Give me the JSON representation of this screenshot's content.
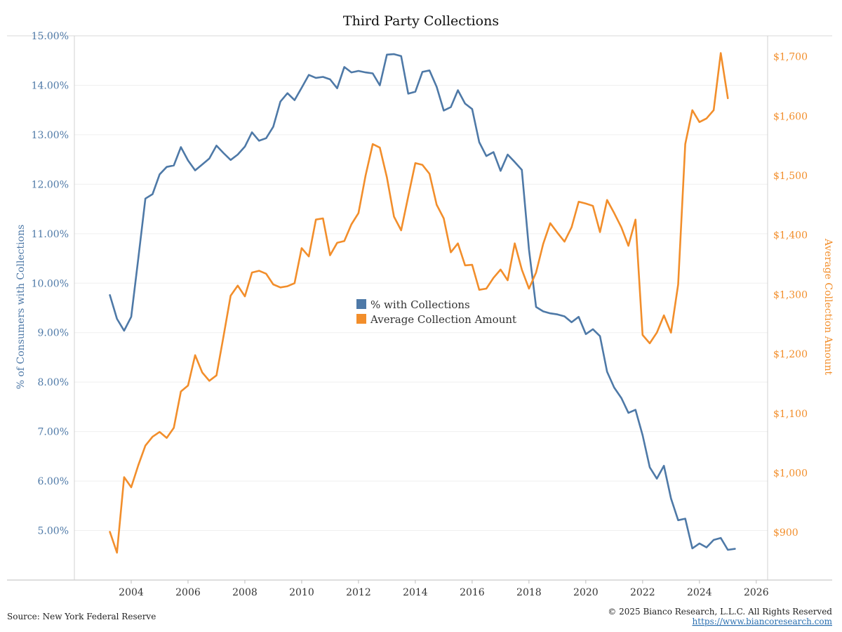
{
  "chart_data": {
    "type": "line",
    "title": "Third Party Collections",
    "y_left_label": "% of Consumers with Collections",
    "y_right_label": "Average Collection Amount",
    "y_left_range": [
      4.0,
      15.0
    ],
    "y_right_range": [
      820,
      1735
    ],
    "x_range": [
      2002.0,
      2026.4
    ],
    "x_ticks": [
      "2004",
      "2006",
      "2008",
      "2010",
      "2012",
      "2014",
      "2016",
      "2018",
      "2020",
      "2022",
      "2024",
      "2026"
    ],
    "y_left_ticks": [
      "5.00%",
      "6.00%",
      "7.00%",
      "8.00%",
      "9.00%",
      "10.00%",
      "11.00%",
      "12.00%",
      "13.00%",
      "14.00%",
      "15.00%"
    ],
    "y_right_ticks": [
      "$900",
      "$1,000",
      "$1,100",
      "$1,200",
      "$1,300",
      "$1,400",
      "$1,500",
      "$1,600",
      "$1,700"
    ],
    "grid": true,
    "legend_placement": "center",
    "series": [
      {
        "name": "% with Collections",
        "axis": "left",
        "color": "#4e79a7",
        "points": [
          [
            2003.25,
            9.76
          ],
          [
            2003.5,
            9.28
          ],
          [
            2003.75,
            9.04
          ],
          [
            2004.0,
            9.32
          ],
          [
            2004.25,
            10.5
          ],
          [
            2004.5,
            11.71
          ],
          [
            2004.75,
            11.8
          ],
          [
            2005.0,
            12.2
          ],
          [
            2005.25,
            12.35
          ],
          [
            2005.5,
            12.38
          ],
          [
            2005.75,
            12.75
          ],
          [
            2006.0,
            12.48
          ],
          [
            2006.25,
            12.28
          ],
          [
            2006.5,
            12.4
          ],
          [
            2006.75,
            12.52
          ],
          [
            2007.0,
            12.78
          ],
          [
            2007.25,
            12.63
          ],
          [
            2007.5,
            12.49
          ],
          [
            2007.75,
            12.6
          ],
          [
            2008.0,
            12.76
          ],
          [
            2008.25,
            13.05
          ],
          [
            2008.5,
            12.88
          ],
          [
            2008.75,
            12.93
          ],
          [
            2009.0,
            13.16
          ],
          [
            2009.25,
            13.67
          ],
          [
            2009.5,
            13.84
          ],
          [
            2009.75,
            13.7
          ],
          [
            2010.0,
            13.95
          ],
          [
            2010.25,
            14.21
          ],
          [
            2010.5,
            14.15
          ],
          [
            2010.75,
            14.17
          ],
          [
            2011.0,
            14.12
          ],
          [
            2011.25,
            13.94
          ],
          [
            2011.5,
            14.37
          ],
          [
            2011.75,
            14.26
          ],
          [
            2012.0,
            14.29
          ],
          [
            2012.25,
            14.26
          ],
          [
            2012.5,
            14.24
          ],
          [
            2012.75,
            14.0
          ],
          [
            2013.0,
            14.62
          ],
          [
            2013.25,
            14.63
          ],
          [
            2013.5,
            14.59
          ],
          [
            2013.75,
            13.83
          ],
          [
            2014.0,
            13.87
          ],
          [
            2014.25,
            14.27
          ],
          [
            2014.5,
            14.3
          ],
          [
            2014.75,
            13.97
          ],
          [
            2015.0,
            13.49
          ],
          [
            2015.25,
            13.56
          ],
          [
            2015.5,
            13.9
          ],
          [
            2015.75,
            13.63
          ],
          [
            2016.0,
            13.52
          ],
          [
            2016.25,
            12.85
          ],
          [
            2016.5,
            12.57
          ],
          [
            2016.75,
            12.65
          ],
          [
            2017.0,
            12.27
          ],
          [
            2017.25,
            12.6
          ],
          [
            2017.5,
            12.45
          ],
          [
            2017.75,
            12.29
          ],
          [
            2018.0,
            10.68
          ],
          [
            2018.25,
            9.52
          ],
          [
            2018.5,
            9.43
          ],
          [
            2018.75,
            9.39
          ],
          [
            2019.0,
            9.37
          ],
          [
            2019.25,
            9.33
          ],
          [
            2019.5,
            9.21
          ],
          [
            2019.75,
            9.32
          ],
          [
            2020.0,
            8.97
          ],
          [
            2020.25,
            9.07
          ],
          [
            2020.5,
            8.93
          ],
          [
            2020.75,
            8.21
          ],
          [
            2021.0,
            7.89
          ],
          [
            2021.25,
            7.68
          ],
          [
            2021.5,
            7.38
          ],
          [
            2021.75,
            7.44
          ],
          [
            2022.0,
            6.93
          ],
          [
            2022.25,
            6.28
          ],
          [
            2022.5,
            6.05
          ],
          [
            2022.75,
            6.31
          ],
          [
            2023.0,
            5.65
          ],
          [
            2023.25,
            5.21
          ],
          [
            2023.5,
            5.24
          ],
          [
            2023.75,
            4.64
          ],
          [
            2024.0,
            4.74
          ],
          [
            2024.25,
            4.66
          ],
          [
            2024.5,
            4.81
          ],
          [
            2024.75,
            4.85
          ],
          [
            2025.0,
            4.61
          ],
          [
            2025.25,
            4.63
          ]
        ]
      },
      {
        "name": "Average Collection Amount",
        "axis": "right",
        "color": "#f28e2b",
        "points": [
          [
            2003.25,
            901
          ],
          [
            2003.5,
            866
          ],
          [
            2003.75,
            993
          ],
          [
            2004.0,
            976
          ],
          [
            2004.25,
            1013
          ],
          [
            2004.5,
            1046
          ],
          [
            2004.75,
            1061
          ],
          [
            2005.0,
            1069
          ],
          [
            2005.25,
            1059
          ],
          [
            2005.5,
            1076
          ],
          [
            2005.75,
            1137
          ],
          [
            2006.0,
            1147
          ],
          [
            2006.25,
            1198
          ],
          [
            2006.5,
            1169
          ],
          [
            2006.75,
            1155
          ],
          [
            2007.0,
            1164
          ],
          [
            2007.25,
            1230
          ],
          [
            2007.5,
            1298
          ],
          [
            2007.75,
            1315
          ],
          [
            2008.0,
            1297
          ],
          [
            2008.25,
            1337
          ],
          [
            2008.5,
            1340
          ],
          [
            2008.75,
            1335
          ],
          [
            2009.0,
            1317
          ],
          [
            2009.25,
            1312
          ],
          [
            2009.5,
            1314
          ],
          [
            2009.75,
            1319
          ],
          [
            2010.0,
            1378
          ],
          [
            2010.25,
            1364
          ],
          [
            2010.5,
            1426
          ],
          [
            2010.75,
            1428
          ],
          [
            2011.0,
            1366
          ],
          [
            2011.25,
            1387
          ],
          [
            2011.5,
            1390
          ],
          [
            2011.75,
            1418
          ],
          [
            2012.0,
            1437
          ],
          [
            2012.25,
            1500
          ],
          [
            2012.5,
            1553
          ],
          [
            2012.75,
            1547
          ],
          [
            2013.0,
            1497
          ],
          [
            2013.25,
            1431
          ],
          [
            2013.5,
            1408
          ],
          [
            2013.75,
            1465
          ],
          [
            2014.0,
            1521
          ],
          [
            2014.25,
            1518
          ],
          [
            2014.5,
            1503
          ],
          [
            2014.75,
            1451
          ],
          [
            2015.0,
            1428
          ],
          [
            2015.25,
            1371
          ],
          [
            2015.5,
            1386
          ],
          [
            2015.75,
            1349
          ],
          [
            2016.0,
            1350
          ],
          [
            2016.25,
            1308
          ],
          [
            2016.5,
            1310
          ],
          [
            2016.75,
            1328
          ],
          [
            2017.0,
            1342
          ],
          [
            2017.25,
            1324
          ],
          [
            2017.5,
            1386
          ],
          [
            2017.75,
            1342
          ],
          [
            2018.0,
            1310
          ],
          [
            2018.25,
            1337
          ],
          [
            2018.5,
            1385
          ],
          [
            2018.75,
            1420
          ],
          [
            2019.0,
            1404
          ],
          [
            2019.25,
            1389
          ],
          [
            2019.5,
            1413
          ],
          [
            2019.75,
            1456
          ],
          [
            2020.0,
            1453
          ],
          [
            2020.25,
            1449
          ],
          [
            2020.5,
            1405
          ],
          [
            2020.75,
            1459
          ],
          [
            2021.0,
            1437
          ],
          [
            2021.25,
            1413
          ],
          [
            2021.5,
            1382
          ],
          [
            2021.75,
            1426
          ],
          [
            2022.0,
            1232
          ],
          [
            2022.25,
            1218
          ],
          [
            2022.5,
            1236
          ],
          [
            2022.75,
            1265
          ],
          [
            2023.0,
            1236
          ],
          [
            2023.25,
            1317
          ],
          [
            2023.5,
            1553
          ],
          [
            2023.75,
            1610
          ],
          [
            2024.0,
            1590
          ],
          [
            2024.25,
            1596
          ],
          [
            2024.5,
            1610
          ],
          [
            2024.75,
            1706
          ],
          [
            2025.0,
            1630
          ]
        ]
      }
    ]
  },
  "footer": {
    "source": "Source: New York Federal Reserve",
    "copyright": "© 2025 Bianco Research, L.L.C. All Rights Reserved",
    "link": "https://www.biancoresearch.com"
  }
}
